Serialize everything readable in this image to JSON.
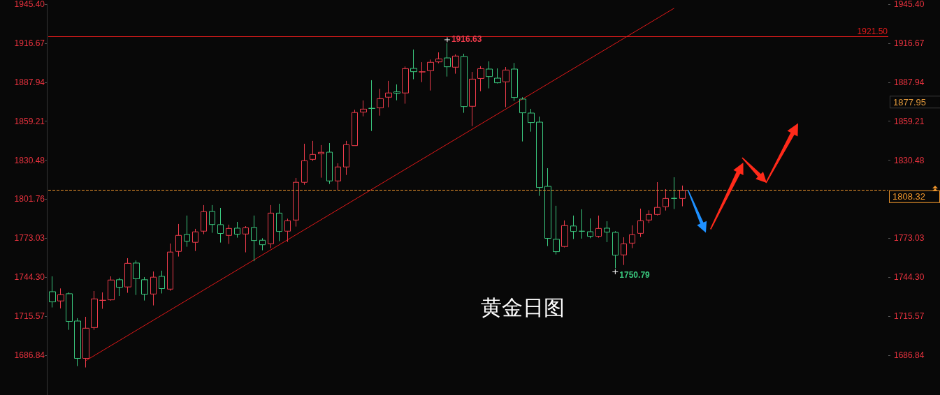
{
  "chart_data": {
    "type": "candlestick",
    "title": "黄金日图",
    "categories": [
      null,
      null,
      null,
      null,
      null,
      null,
      null,
      null,
      null,
      null,
      null,
      null,
      null,
      null,
      null,
      null,
      null,
      null,
      null,
      null,
      null,
      null,
      null,
      null,
      null,
      null,
      null,
      null,
      null,
      null,
      null,
      null,
      null,
      null,
      null,
      null,
      null,
      null,
      null,
      null,
      null,
      null,
      null,
      null,
      null,
      null,
      null,
      null,
      null,
      null,
      null,
      null,
      null,
      null,
      null,
      null,
      null,
      null,
      null,
      null,
      null,
      null,
      null,
      null,
      null,
      null,
      null,
      null,
      null,
      null,
      null,
      null,
      null,
      null,
      null,
      null,
      null,
      null,
      null,
      null,
      null,
      null,
      null,
      null,
      null,
      null,
      null,
      null,
      null,
      null,
      null,
      null,
      null,
      null,
      null,
      null,
      null,
      null,
      null,
      null
    ],
    "series": [
      {
        "ohlc": [
          [
            1733.6,
            1744.9,
            1722.0,
            1726.1
          ],
          [
            1726.8,
            1736.0,
            1721.3,
            1731.4
          ],
          [
            1732.1,
            1733.1,
            1705.5,
            1711.7
          ],
          [
            1712.0,
            1714.1,
            1678.8,
            1684.5
          ],
          [
            1684.5,
            1715.1,
            1677.8,
            1706.7
          ],
          [
            1707.2,
            1734.1,
            1705.5,
            1728.3
          ],
          [
            1727.2,
            1733.1,
            1721.0,
            1727.3
          ],
          [
            1727.6,
            1744.9,
            1727.0,
            1742.2
          ],
          [
            1742.4,
            1743.9,
            1730.5,
            1736.9
          ],
          [
            1737.1,
            1758.3,
            1732.8,
            1754.5
          ],
          [
            1754.7,
            1756.6,
            1731.2,
            1743.1
          ],
          [
            1742.4,
            1744.4,
            1727.1,
            1731.8
          ],
          [
            1731.9,
            1748.5,
            1723.5,
            1744.3
          ],
          [
            1744.9,
            1749.1,
            1732.3,
            1735.9
          ],
          [
            1735.5,
            1769.1,
            1734.3,
            1762.8
          ],
          [
            1763.3,
            1783.5,
            1759.5,
            1775.1
          ],
          [
            1775.8,
            1789.7,
            1766.7,
            1770.8
          ],
          [
            1770.0,
            1779.9,
            1763.6,
            1777.7
          ],
          [
            1778.2,
            1797.4,
            1776.0,
            1792.6
          ],
          [
            1792.7,
            1797.4,
            1777.0,
            1783.1
          ],
          [
            1783.0,
            1795.3,
            1769.8,
            1776.5
          ],
          [
            1775.1,
            1783.0,
            1768.8,
            1780.2
          ],
          [
            1780.4,
            1785.0,
            1773.4,
            1776.0
          ],
          [
            1776.1,
            1781.9,
            1762.6,
            1780.7
          ],
          [
            1780.9,
            1789.7,
            1756.1,
            1771.3
          ],
          [
            1771.5,
            1773.0,
            1764.1,
            1768.2
          ],
          [
            1768.9,
            1797.4,
            1765.7,
            1791.5
          ],
          [
            1791.5,
            1798.4,
            1770.8,
            1778.0
          ],
          [
            1778.2,
            1787.4,
            1770.3,
            1785.9
          ],
          [
            1786.4,
            1817.4,
            1781.6,
            1814.2
          ],
          [
            1814.2,
            1842.6,
            1812.4,
            1830.1
          ],
          [
            1831.1,
            1844.7,
            1829.9,
            1834.7
          ],
          [
            1835.2,
            1841.6,
            1817.6,
            1836.3
          ],
          [
            1836.4,
            1843.1,
            1813.0,
            1815.2
          ],
          [
            1815.2,
            1828.2,
            1808.3,
            1825.5
          ],
          [
            1825.5,
            1844.7,
            1819.6,
            1841.9
          ],
          [
            1841.2,
            1867.6,
            1841.2,
            1865.6
          ],
          [
            1865.9,
            1874.5,
            1862.8,
            1868.1
          ],
          [
            1868.7,
            1889.4,
            1852.0,
            1868.6
          ],
          [
            1869.0,
            1883.0,
            1863.3,
            1875.8
          ],
          [
            1876.9,
            1888.9,
            1869.5,
            1880.0
          ],
          [
            1880.8,
            1886.3,
            1874.6,
            1879.8
          ],
          [
            1880.0,
            1899.5,
            1872.1,
            1897.9
          ],
          [
            1898.1,
            1912.0,
            1890.1,
            1895.7
          ],
          [
            1895.5,
            1902.7,
            1888.0,
            1895.6
          ],
          [
            1896.4,
            1904.6,
            1881.8,
            1902.6
          ],
          [
            1902.9,
            1909.9,
            1901.9,
            1905.1
          ],
          [
            1905.8,
            1916.63,
            1892.1,
            1899.3
          ],
          [
            1899.0,
            1908.4,
            1894.2,
            1907.2
          ],
          [
            1906.9,
            1908.9,
            1865.4,
            1870.0
          ],
          [
            1870.2,
            1895.5,
            1855.6,
            1890.2
          ],
          [
            1890.7,
            1899.7,
            1881.3,
            1897.9
          ],
          [
            1897.6,
            1903.3,
            1883.4,
            1892.1
          ],
          [
            1890.9,
            1898.1,
            1887.0,
            1887.5
          ],
          [
            1888.2,
            1899.1,
            1869.5,
            1896.9
          ],
          [
            1897.6,
            1902.1,
            1874.1,
            1876.7
          ],
          [
            1875.5,
            1876.9,
            1844.3,
            1865.4
          ],
          [
            1865.2,
            1868.3,
            1851.5,
            1858.2
          ],
          [
            1858.5,
            1862.6,
            1804.2,
            1810.4
          ],
          [
            1811.2,
            1824.6,
            1767.2,
            1772.9
          ],
          [
            1772.2,
            1796.9,
            1761.0,
            1763.1
          ],
          [
            1766.9,
            1786.1,
            1766.2,
            1782.3
          ],
          [
            1782.0,
            1789.7,
            1772.4,
            1778.0
          ],
          [
            1778.2,
            1794.3,
            1772.7,
            1778.1
          ],
          [
            1777.8,
            1787.6,
            1773.0,
            1774.4
          ],
          [
            1774.4,
            1789.7,
            1773.4,
            1780.2
          ],
          [
            1780.4,
            1785.5,
            1770.1,
            1777.5
          ],
          [
            1777.3,
            1778.2,
            1750.79,
            1760.5
          ],
          [
            1760.7,
            1773.7,
            1753.3,
            1768.9
          ],
          [
            1769.4,
            1782.5,
            1765.7,
            1775.6
          ],
          [
            1776.6,
            1794.8,
            1773.9,
            1785.9
          ],
          [
            1786.4,
            1793.6,
            1784.2,
            1790.5
          ],
          [
            1790.5,
            1814.3,
            1789.8,
            1795.7
          ],
          [
            1796.2,
            1809.2,
            1793.4,
            1802.3
          ],
          [
            1802.4,
            1817.9,
            1794.5,
            1802.3
          ],
          [
            1802.3,
            1811.8,
            1796.5,
            1808.3
          ],
          null,
          null,
          null,
          null,
          null,
          null,
          null,
          null,
          null,
          null,
          null,
          null,
          null,
          null,
          null,
          null,
          null,
          null,
          null,
          null,
          null,
          null,
          null,
          null
        ],
        "colors": [
          "#3ac87e",
          "#ee3b4b",
          "#3ac87e",
          "#3ac87e",
          "#ee3b4b",
          "#ee3b4b",
          "#ee3b4b",
          "#ee3b4b",
          "#3ac87e",
          "#ee3b4b",
          "#3ac87e",
          "#3ac87e",
          "#ee3b4b",
          "#3ac87e",
          "#ee3b4b",
          "#ee3b4b",
          "#3ac87e",
          "#ee3b4b",
          "#ee3b4b",
          "#3ac87e",
          "#3ac87e",
          "#ee3b4b",
          "#3ac87e",
          "#ee3b4b",
          "#3ac87e",
          "#3ac87e",
          "#ee3b4b",
          "#3ac87e",
          "#ee3b4b",
          "#ee3b4b",
          "#ee3b4b",
          "#ee3b4b",
          "#ee3b4b",
          "#3ac87e",
          "#ee3b4b",
          "#ee3b4b",
          "#ee3b4b",
          "#ee3b4b",
          "#3ac87e",
          "#ee3b4b",
          "#ee3b4b",
          "#3ac87e",
          "#ee3b4b",
          "#3ac87e",
          "#ee3b4b",
          "#ee3b4b",
          "#ee3b4b",
          "#3ac87e",
          "#ee3b4b",
          "#3ac87e",
          "#ee3b4b",
          "#ee3b4b",
          "#3ac87e",
          "#3ac87e",
          "#ee3b4b",
          "#3ac87e",
          "#3ac87e",
          "#3ac87e",
          "#3ac87e",
          "#3ac87e",
          "#3ac87e",
          "#ee3b4b",
          "#3ac87e",
          "#3ac87e",
          "#3ac87e",
          "#ee3b4b",
          "#3ac87e",
          "#3ac87e",
          "#ee3b4b",
          "#ee3b4b",
          "#ee3b4b",
          "#ee3b4b",
          "#ee3b4b",
          "#ee3b4b",
          "#3ac87e",
          "#ee3b4b",
          null,
          null,
          null,
          null,
          null,
          null,
          null,
          null,
          null,
          null,
          null,
          null,
          null,
          null,
          null,
          null,
          null,
          null,
          null,
          null,
          null,
          null,
          null,
          null
        ]
      },
      {
        "type": "line",
        "color": "#e01818",
        "marker": "none",
        "values": [
          null,
          null,
          null,
          null,
          1682.9,
          null,
          null,
          null,
          null,
          null,
          null,
          null,
          null,
          null,
          null,
          null,
          null,
          null,
          null,
          null,
          null,
          null,
          null,
          null,
          null,
          null,
          null,
          null,
          null,
          null,
          null,
          null,
          null,
          null,
          null,
          null,
          null,
          null,
          null,
          null,
          null,
          null,
          null,
          null,
          null,
          null,
          null,
          null,
          null,
          null,
          null,
          null,
          null,
          null,
          null,
          null,
          null,
          null,
          null,
          null,
          null,
          null,
          null,
          null,
          null,
          null,
          null,
          null,
          null,
          null,
          null,
          null,
          null,
          null,
          1942.4,
          null,
          null,
          null,
          null,
          null,
          null,
          null,
          null,
          null,
          null,
          null,
          null,
          null,
          null,
          null,
          null,
          null,
          null,
          null,
          null,
          null,
          null,
          null,
          null,
          null
        ]
      }
    ],
    "ylim": [
      1657.5,
      1945.4
    ],
    "yticks": [
      1686.84,
      1715.57,
      {
        "value": 1744.3,
        "label": "1744.30"
      },
      1773.03,
      1801.76,
      1830.48,
      1859.21,
      1887.94,
      1916.67,
      {
        "value": 1945.4,
        "label": "1945.40"
      }
    ],
    "y2lim": [
      1657.5,
      1945.4
    ],
    "y2ticks": [
      1686.84,
      1715.57,
      {
        "value": 1744.3,
        "label": "1744.30"
      },
      1773.03,
      1830.48,
      1859.21,
      1887.94,
      1916.67,
      {
        "value": 1945.4,
        "label": "1945.40"
      }
    ],
    "tick_labels": "y",
    "ref_lines": [
      {
        "axis": "y",
        "value": 1921.5,
        "label": "1921.50",
        "color": "#e31b1b",
        "line_style": "solid"
      },
      {
        "axis": "y",
        "value": 1808.32,
        "label": "1808.32",
        "color": "#f0962c",
        "line_style": "dashed"
      }
    ],
    "annotations": [
      "1916.63",
      "1750.79",
      "1877.95"
    ]
  }
}
